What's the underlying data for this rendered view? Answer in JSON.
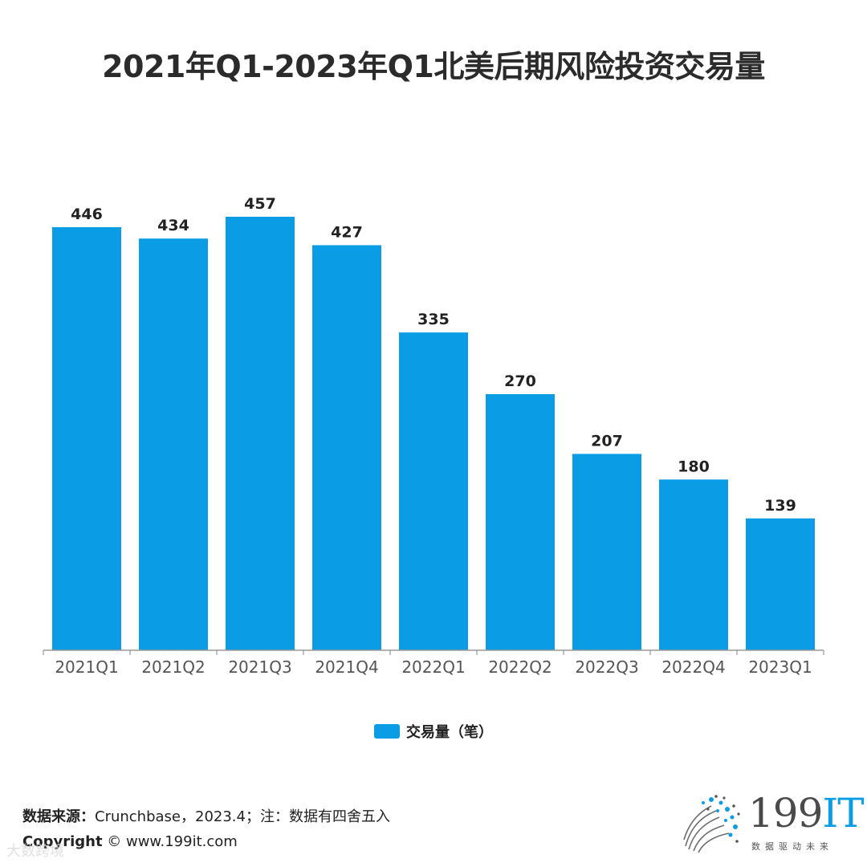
{
  "chart_data": {
    "type": "bar",
    "title": "2021年Q1-2023年Q1北美后期风险投资交易量",
    "categories": [
      "2021Q1",
      "2021Q2",
      "2021Q3",
      "2021Q4",
      "2022Q1",
      "2022Q2",
      "2022Q3",
      "2022Q4",
      "2023Q1"
    ],
    "series": [
      {
        "name": "交易量（笔）",
        "values": [
          446,
          434,
          457,
          427,
          335,
          270,
          207,
          180,
          139
        ]
      }
    ],
    "ylim": [
      0,
      457
    ],
    "grid": false,
    "legend_position": "bottom-center",
    "bar_color": "#0a9de6",
    "data_labels": true
  },
  "footer": {
    "source_label": "数据来源：",
    "source_text": "Crunchbase，2023.4；注：数据有四舍五入",
    "copyright_label": "Copyright",
    "copyright_text": " © www.199it.com",
    "watermark": "大数跨境"
  },
  "logo": {
    "number": "199",
    "it": "IT",
    "tagline": "数据驱动未来"
  }
}
